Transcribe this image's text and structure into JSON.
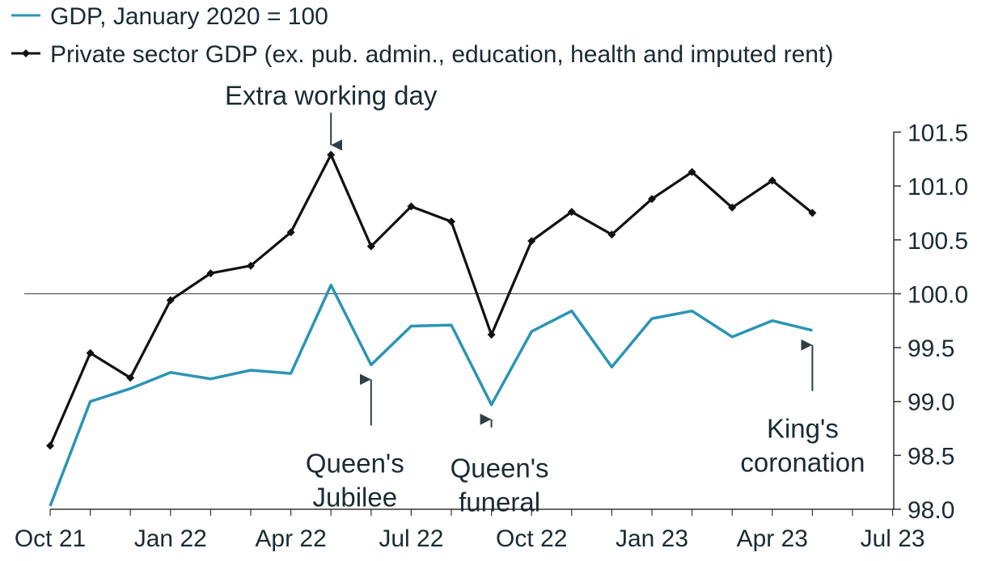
{
  "chart_data": {
    "type": "line",
    "title": "",
    "xlabel": "",
    "ylabel": "",
    "x": [
      "Oct 21",
      "Nov 21",
      "Dec 21",
      "Jan 22",
      "Feb 22",
      "Mar 22",
      "Apr 22",
      "May 22",
      "Jun 22",
      "Jul 22",
      "Aug 22",
      "Sep 22",
      "Oct 22",
      "Nov 22",
      "Dec 22",
      "Jan 23",
      "Feb 23",
      "Mar 23",
      "Apr 23",
      "May 23"
    ],
    "x_ticks": [
      "Oct 21",
      "Jan 22",
      "Apr 22",
      "Jul 22",
      "Oct 22",
      "Jan 23",
      "Apr 23",
      "Jul 23"
    ],
    "y_ticks": [
      "98.0",
      "98.5",
      "99.0",
      "99.5",
      "100.0",
      "100.5",
      "101.0",
      "101.5"
    ],
    "ylim": [
      98.0,
      101.5
    ],
    "reference_line": 100.0,
    "series": [
      {
        "name": "GDP, January 2020 = 100",
        "color": "#2b95b3",
        "marker": "none",
        "values": [
          98.03,
          99.0,
          99.12,
          99.27,
          99.21,
          99.29,
          99.26,
          100.08,
          99.34,
          99.7,
          99.71,
          98.97,
          99.65,
          99.84,
          99.32,
          99.77,
          99.84,
          99.6,
          99.75,
          99.66
        ]
      },
      {
        "name": "Private sector GDP (ex. pub. admin., education, health and imputed rent)",
        "color": "#111111",
        "marker": "diamond",
        "values": [
          98.59,
          99.45,
          99.22,
          99.94,
          100.19,
          100.26,
          100.57,
          101.29,
          100.44,
          100.81,
          100.67,
          99.62,
          100.49,
          100.76,
          100.55,
          100.88,
          101.13,
          100.8,
          101.05,
          100.75
        ]
      }
    ],
    "annotations": [
      {
        "lines": [
          "Extra working day"
        ],
        "index": 7,
        "series": 1,
        "arrow": "down"
      },
      {
        "lines": [
          "Queen's",
          "Jubilee"
        ],
        "index": 8,
        "series": 0,
        "arrow": "up"
      },
      {
        "lines": [
          "Queen's",
          "funeral"
        ],
        "index": 11,
        "series": 0,
        "arrow": "up"
      },
      {
        "lines": [
          "King's",
          "coronation"
        ],
        "index": 19,
        "series": 0,
        "arrow": "up"
      }
    ],
    "legend_position": "top-left"
  }
}
